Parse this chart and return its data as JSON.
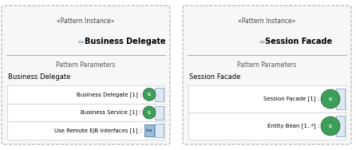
{
  "fig_bg": "#ffffff",
  "panel_bg": "#f7f7f7",
  "border_color": "#b0b0b0",
  "divider_color": "#b0b0b0",
  "row_bg": "#ffffff",
  "row_border": "#cccccc",
  "circle_fill": "#3d9e5a",
  "circle_edge": "#2a7040",
  "box_fill": "#dce8f5",
  "box_edge": "#7a9abf",
  "bool_fill": "#9bbbd8",
  "bool_edge": "#4a7aaa",
  "text_color": "#000000",
  "stereo_color": "#444444",
  "icon_color": "#6688aa",
  "label_color": "#555555",
  "panels": [
    {
      "title": "Business Delegate",
      "stereotype": "«Pattern Instance»",
      "section_label": "Pattern Parameters",
      "class_label": "Business Delegate",
      "rows": [
        {
          "label": "Business Delegate [1] :",
          "type": "circle"
        },
        {
          "label": "Business Service [1] :",
          "type": "circle"
        },
        {
          "label": "Use Remote EJB Interfaces [1] :",
          "type": "bool"
        }
      ]
    },
    {
      "title": "Session Facade",
      "stereotype": "«Pattern Instance»",
      "section_label": "Pattern Parameters",
      "class_label": "Session Facade",
      "rows": [
        {
          "label": "Session Facade [1] :",
          "type": "circle"
        },
        {
          "label": "Entity Bean [1..*] :",
          "type": "circle"
        }
      ]
    }
  ]
}
